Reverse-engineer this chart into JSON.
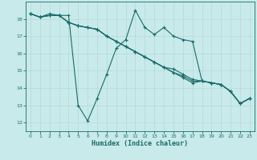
{
  "xlabel": "Humidex (Indice chaleur)",
  "bg_color": "#c8eaea",
  "line_color": "#1a6b6b",
  "grid_color": "#b8d8d8",
  "xlim": [
    -0.5,
    23.5
  ],
  "ylim": [
    11.5,
    19.0
  ],
  "yticks": [
    12,
    13,
    14,
    15,
    16,
    17,
    18
  ],
  "xticks": [
    0,
    1,
    2,
    3,
    4,
    5,
    6,
    7,
    8,
    9,
    10,
    11,
    12,
    13,
    14,
    15,
    16,
    17,
    18,
    19,
    20,
    21,
    22,
    23
  ],
  "series": [
    [
      18.3,
      18.1,
      18.3,
      18.2,
      18.2,
      13.0,
      12.1,
      13.4,
      14.8,
      16.3,
      16.8,
      18.5,
      17.5,
      17.1,
      17.5,
      17.0,
      16.8,
      16.7,
      14.4,
      14.3,
      14.2,
      13.8,
      13.1,
      13.4
    ],
    [
      18.3,
      18.1,
      18.2,
      18.2,
      17.8,
      17.6,
      17.5,
      17.4,
      17.0,
      16.7,
      16.4,
      16.1,
      15.8,
      15.5,
      15.2,
      14.9,
      14.6,
      14.3,
      14.4,
      14.3,
      14.2,
      13.8,
      13.1,
      13.4
    ],
    [
      18.3,
      18.1,
      18.2,
      18.2,
      17.8,
      17.6,
      17.5,
      17.4,
      17.0,
      16.7,
      16.4,
      16.1,
      15.8,
      15.5,
      15.2,
      14.9,
      14.7,
      14.4,
      14.4,
      14.3,
      14.2,
      13.8,
      13.1,
      13.4
    ],
    [
      18.3,
      18.1,
      18.2,
      18.2,
      17.8,
      17.6,
      17.5,
      17.4,
      17.0,
      16.7,
      16.4,
      16.1,
      15.8,
      15.5,
      15.2,
      15.1,
      14.8,
      14.5,
      14.4,
      14.3,
      14.2,
      13.8,
      13.1,
      13.4
    ]
  ]
}
